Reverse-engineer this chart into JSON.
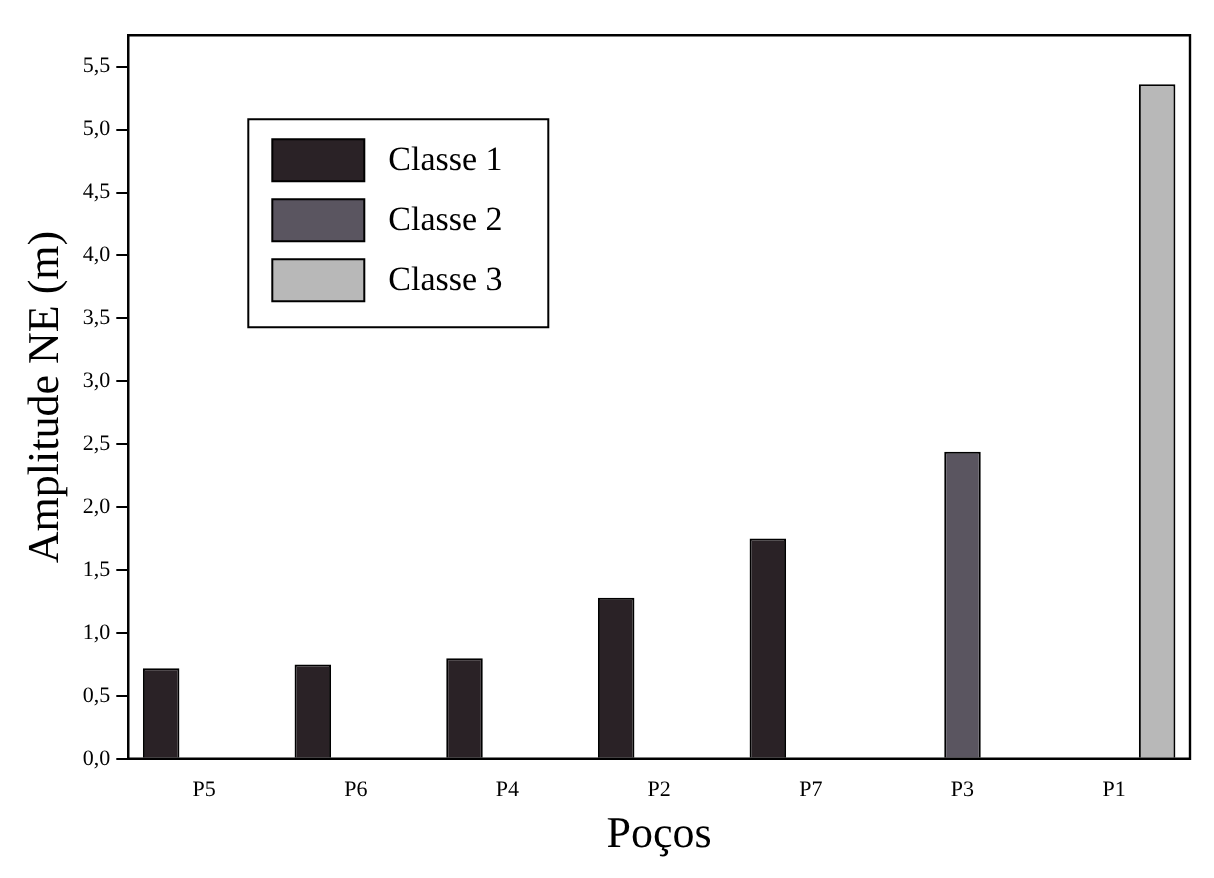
{
  "chart_data": {
    "type": "bar",
    "xlabel": "Poços",
    "ylabel": "Amplitude NE (m)",
    "categories": [
      "P5",
      "P6",
      "P4",
      "P2",
      "P7",
      "P3",
      "P1"
    ],
    "series": [
      {
        "name": "Classe 1",
        "color": "#2a2226",
        "values": [
          0.72,
          0.75,
          0.8,
          1.28,
          1.75,
          null,
          null
        ]
      },
      {
        "name": "Classe 2",
        "color": "#5a5560",
        "values": [
          null,
          null,
          null,
          null,
          null,
          2.44,
          null
        ]
      },
      {
        "name": "Classe 3",
        "color": "#b8b8b8",
        "values": [
          null,
          null,
          null,
          null,
          null,
          null,
          5.36
        ]
      }
    ],
    "ylim": [
      0,
      5.75
    ],
    "yticks": [
      {
        "value": 0,
        "label": "0,0"
      },
      {
        "value": 0.5,
        "label": "0,5"
      },
      {
        "value": 1,
        "label": "1,0"
      },
      {
        "value": 1.5,
        "label": "1,5"
      },
      {
        "value": 2,
        "label": "2,0"
      },
      {
        "value": 2.5,
        "label": "2,5"
      },
      {
        "value": 3,
        "label": "3,0"
      },
      {
        "value": 3.5,
        "label": "3,5"
      },
      {
        "value": 4,
        "label": "4,0"
      },
      {
        "value": 4.5,
        "label": "4,5"
      },
      {
        "value": 5,
        "label": "5,0"
      },
      {
        "value": 5.5,
        "label": "5,5"
      }
    ],
    "grid": false,
    "legend": "top left"
  }
}
